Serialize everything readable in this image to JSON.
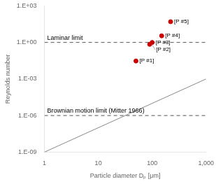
{
  "chart_data": {
    "type": "scatter",
    "xlabel": "Particle diameter Dₚ [μm]",
    "ylabel": "Reynolds number",
    "log": true,
    "grid": false,
    "xlim": [
      1,
      1000
    ],
    "ylim": [
      1e-09,
      1000
    ],
    "xticks": [
      1,
      10,
      100,
      {
        "value": 1000,
        "label": "1,000"
      }
    ],
    "yticks": [
      {
        "value": 1000,
        "label": "1.E+03"
      },
      {
        "value": 1,
        "label": "1.E+00"
      },
      {
        "value": 0.001,
        "label": "1.E-03"
      },
      {
        "value": 1e-06,
        "label": "1.E-06"
      },
      {
        "value": 1e-09,
        "label": "1.E-09"
      }
    ],
    "series": [
      {
        "type": "line",
        "color": "#888888",
        "line_style": "solid",
        "x": [
          1,
          1000
        ],
        "values": [
          1e-09,
          0.001
        ]
      },
      {
        "type": "scatter",
        "color": "#cc0000",
        "marker": "circle",
        "x": [
          50,
          90,
          100,
          150,
          220
        ],
        "values": [
          0.03,
          0.7,
          1.0,
          3.5,
          50
        ],
        "labels": [
          "[P #1]",
          "[P #2]",
          "[P #3]",
          "[P #4]",
          "[P #5]"
        ]
      }
    ],
    "annotations": [
      {
        "type": "hline",
        "y": 1.0,
        "label": "Laminar limit",
        "color": "#555555",
        "line_style": "dashed"
      },
      {
        "type": "hline",
        "y": 1e-06,
        "label": "Brownian motion limit (Mitter 1966)",
        "color": "#555555",
        "line_style": "dashed"
      }
    ]
  }
}
